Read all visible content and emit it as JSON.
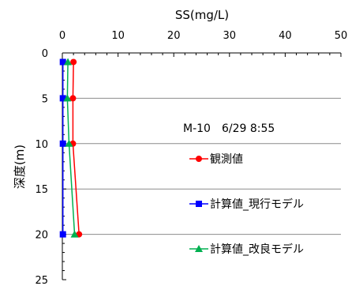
{
  "chart_data": {
    "type": "line",
    "orientation": "profile",
    "x_axis": {
      "label": "SS(mg/L)",
      "position": "top",
      "range": [
        0,
        50
      ],
      "ticks": [
        "0",
        "10",
        "20",
        "30",
        "40",
        "50"
      ]
    },
    "y_axis": {
      "label": "深度(m)",
      "range": [
        0,
        25
      ],
      "inverted": true,
      "ticks": [
        "0",
        "5",
        "10",
        "15",
        "20",
        "25"
      ]
    },
    "grid": "horizontal",
    "annotation": "M-10　6/29 8:55",
    "legend_position": "right",
    "series": [
      {
        "name": "観測値",
        "color": "#ff0000",
        "marker": "circle",
        "points": [
          {
            "x": 2.0,
            "y": 1
          },
          {
            "x": 1.9,
            "y": 5
          },
          {
            "x": 1.9,
            "y": 10
          },
          {
            "x": 3.0,
            "y": 20
          }
        ]
      },
      {
        "name": "計算値_現行モデル",
        "color": "#0000ff",
        "marker": "square",
        "points": [
          {
            "x": 0.1,
            "y": 1
          },
          {
            "x": 0.1,
            "y": 5
          },
          {
            "x": 0.1,
            "y": 10
          },
          {
            "x": 0.1,
            "y": 20
          }
        ]
      },
      {
        "name": "計算値_改良モデル",
        "color": "#00b050",
        "marker": "triangle",
        "points": [
          {
            "x": 1.0,
            "y": 1
          },
          {
            "x": 0.9,
            "y": 5
          },
          {
            "x": 1.2,
            "y": 10
          },
          {
            "x": 2.2,
            "y": 20
          }
        ]
      }
    ]
  }
}
